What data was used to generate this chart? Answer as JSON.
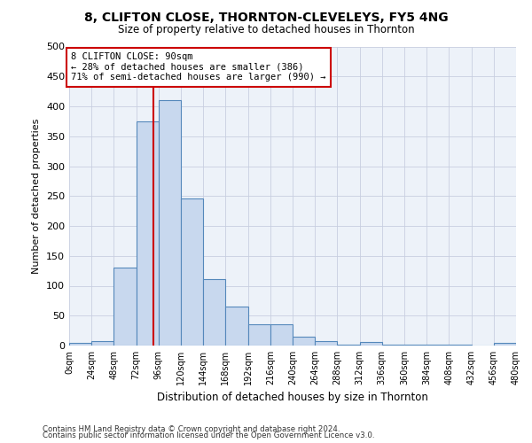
{
  "title": "8, CLIFTON CLOSE, THORNTON-CLEVELEYS, FY5 4NG",
  "subtitle": "Size of property relative to detached houses in Thornton",
  "xlabel": "Distribution of detached houses by size in Thornton",
  "ylabel": "Number of detached properties",
  "bar_color": "#c8d8ee",
  "bar_edge_color": "#5588bb",
  "background_color": "#edf2f9",
  "vline_color": "#cc0000",
  "bin_edges": [
    0,
    24,
    48,
    72,
    96,
    120,
    144,
    168,
    192,
    216,
    240,
    264,
    288,
    312,
    336,
    360,
    384,
    408,
    432,
    456,
    480
  ],
  "counts": [
    5,
    7,
    130,
    375,
    410,
    246,
    111,
    65,
    35,
    35,
    15,
    8,
    2,
    6,
    2,
    2,
    2,
    1,
    0,
    4
  ],
  "property_size": 90,
  "annotation_text": "8 CLIFTON CLOSE: 90sqm\n← 28% of detached houses are smaller (386)\n71% of semi-detached houses are larger (990) →",
  "annotation_box_color": "#cc0000",
  "ylim": [
    0,
    500
  ],
  "yticks": [
    0,
    50,
    100,
    150,
    200,
    250,
    300,
    350,
    400,
    450,
    500
  ],
  "tick_labels": [
    "0sqm",
    "24sqm",
    "48sqm",
    "72sqm",
    "96sqm",
    "120sqm",
    "144sqm",
    "168sqm",
    "192sqm",
    "216sqm",
    "240sqm",
    "264sqm",
    "288sqm",
    "312sqm",
    "336sqm",
    "360sqm",
    "384sqm",
    "408sqm",
    "432sqm",
    "456sqm",
    "480sqm"
  ],
  "footnote1": "Contains HM Land Registry data © Crown copyright and database right 2024.",
  "footnote2": "Contains public sector information licensed under the Open Government Licence v3.0."
}
